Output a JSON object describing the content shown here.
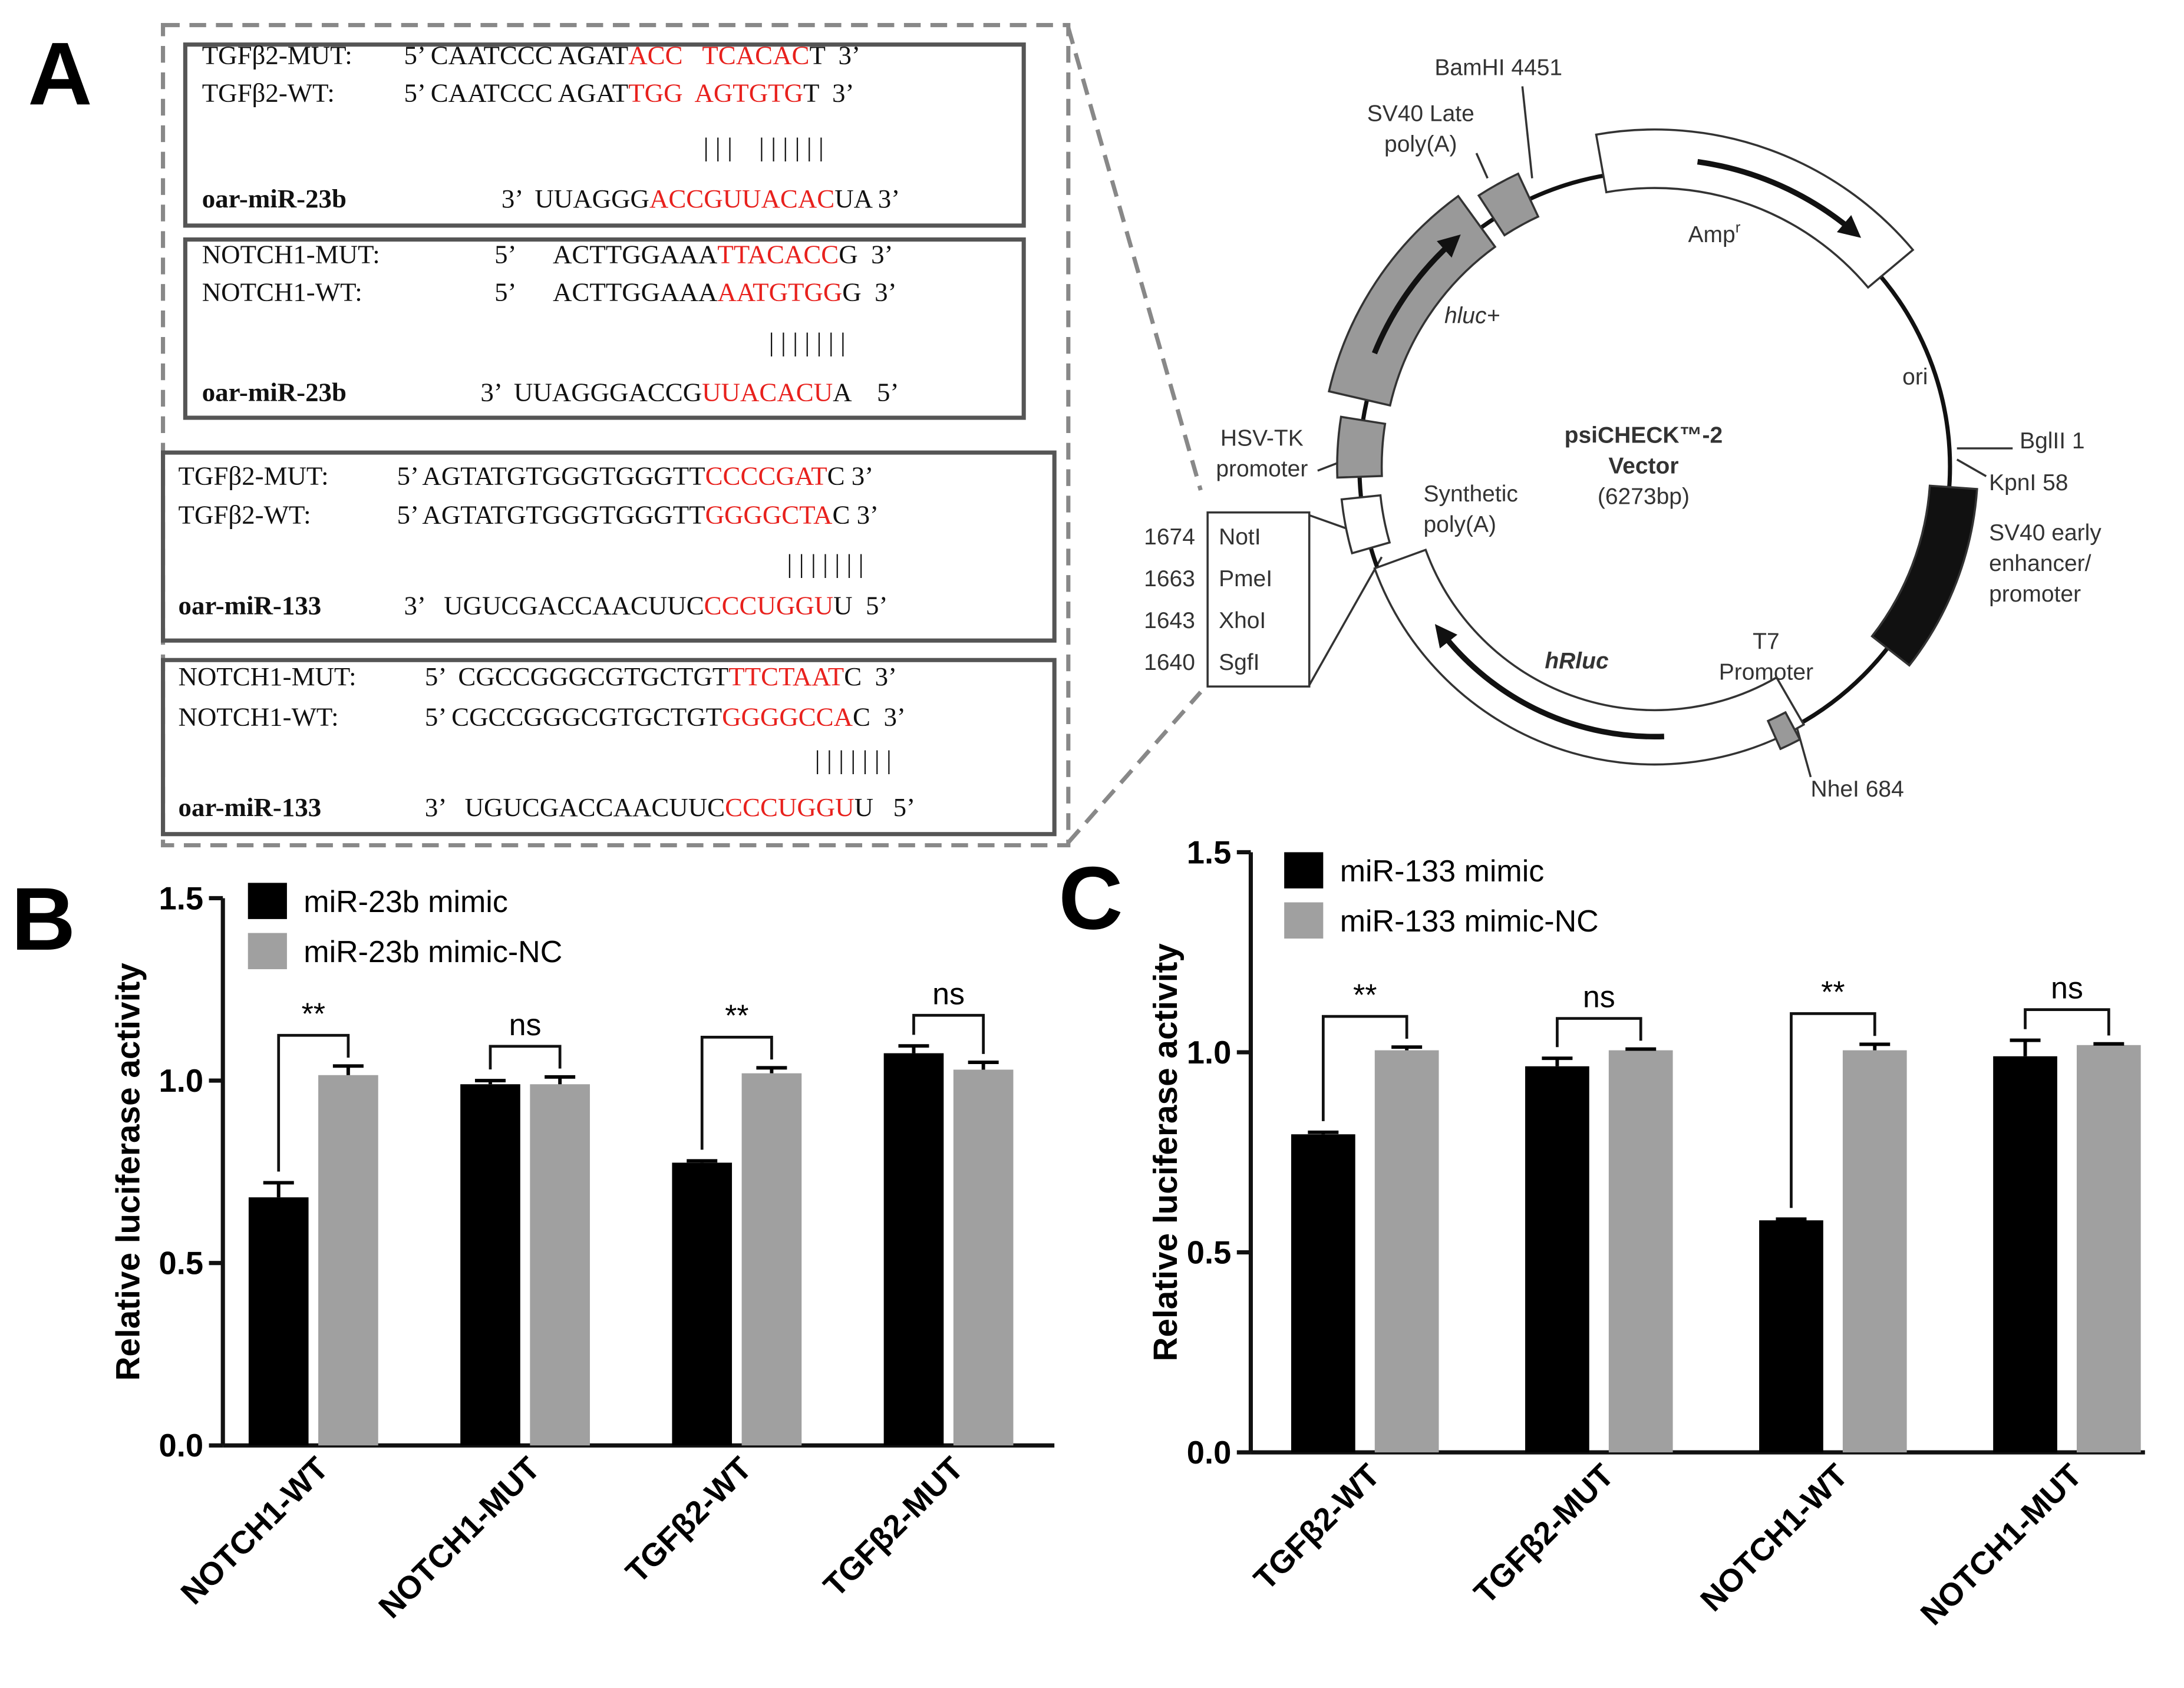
{
  "panels": [
    "A",
    "B",
    "C"
  ],
  "highlight_color": "#e8211d",
  "sequences": [
    {
      "lines": [
        {
          "label": "TGFβ2-MUT:",
          "before": "5’ CAATCCC AGAT",
          "highlight": "ACC   TCACAC",
          "after": "T  3’"
        },
        {
          "label": "TGFβ2-WT:",
          "before": "5’ CAATCCC AGAT",
          "highlight": "TGG  AGTGTG",
          "after": "T  3’"
        },
        {
          "pairs": "| | |    | | | | | |"
        },
        {
          "label": "oar-miR-23b",
          "before": "3’  UUAGGG",
          "highlight": "ACCGUUACAC",
          "after": "UA 3’"
        }
      ]
    },
    {
      "lines": [
        {
          "label": "NOTCH1-MUT:",
          "before": "5’      ACTTGGAAA",
          "highlight": "TTACACC",
          "after": "G  3’"
        },
        {
          "label": "NOTCH1-WT:",
          "before": "5’      ACTTGGAAA",
          "highlight": "AATGTGG",
          "after": "G  3’"
        },
        {
          "pairs": "| | | | | | |"
        },
        {
          "label": "oar-miR-23b",
          "before": "3’  UUAGGGACCG",
          "highlight": "UUACACU",
          "after": "A    5’"
        }
      ]
    },
    {
      "lines": [
        {
          "label": "TGFβ2-MUT:",
          "before": "5’ AGTATGTGGGTGGGTT",
          "highlight": "CCCCGAT",
          "after": "C 3’"
        },
        {
          "label": "TGFβ2-WT:",
          "before": "5’ AGTATGTGGGTGGGTT",
          "highlight": "GGGGCTA",
          "after": "C 3’"
        },
        {
          "pairs": "| | | | | | |"
        },
        {
          "label": "oar-miR-133",
          "before": "3’   UGUCGACCAACUUC",
          "highlight": "CCCUGGU",
          "after": "U  5’"
        }
      ]
    },
    {
      "lines": [
        {
          "label": "NOTCH1-MUT:",
          "before": "5’  CGCCGGGCGTGCTGT",
          "highlight": "TTCTAAT",
          "after": "C  3’"
        },
        {
          "label": "NOTCH1-WT:",
          "before": "5’ CGCCGGGCGTGCTGT",
          "highlight": "GGGGCCA",
          "after": "C  3’"
        },
        {
          "pairs": "| | | | | | |"
        },
        {
          "label": "oar-miR-133",
          "before": "3’   UGUCGACCAACUUC",
          "highlight": "CCCUGGU",
          "after": "U   5’"
        }
      ]
    }
  ],
  "vector": {
    "name": [
      "psiCHECK™-2",
      "Vector"
    ],
    "size": "(6273bp)",
    "labels": [
      [
        "BamHI 4451"
      ],
      [
        "SV40 Late",
        "poly(A)"
      ],
      [
        "Amp",
        "r"
      ],
      [
        "hluc+"
      ],
      [
        "ori"
      ],
      [
        "BglII 1"
      ],
      [
        "KpnI 58"
      ],
      [
        "SV40 early",
        "enhancer/",
        "promoter"
      ],
      [
        "T7",
        "Promoter"
      ],
      [
        "hRluc"
      ],
      [
        "NheI 684"
      ],
      [
        "HSV-TK",
        "promoter"
      ],
      [
        "Synthetic",
        "poly(A)"
      ]
    ],
    "sites": [
      {
        "position": 1674,
        "name": "NotI"
      },
      {
        "position": 1663,
        "name": "PmeI"
      },
      {
        "position": 1643,
        "name": "XhoI"
      },
      {
        "position": 1640,
        "name": "SgfI"
      }
    ]
  },
  "chart_data": [
    {
      "type": "bar",
      "ylabel": "Relative luciferase activity",
      "categories": [
        "NOTCH1-WT",
        "NOTCH1-MUT",
        "TGFβ2-WT",
        "TGFβ2-MUT"
      ],
      "series": [
        {
          "name": "miR-23b mimic",
          "color": "#000000",
          "values": [
            0.68,
            0.99,
            0.775,
            1.075
          ],
          "errors": [
            0.04,
            0.01,
            0.005,
            0.02
          ]
        },
        {
          "name": "miR-23b mimic-NC",
          "color": "#a0a0a0",
          "values": [
            1.015,
            0.99,
            1.02,
            1.03
          ],
          "errors": [
            0.025,
            0.02,
            0.015,
            0.02
          ]
        }
      ],
      "significance": [
        "**",
        "ns",
        "**",
        "ns"
      ],
      "ylim": [
        0,
        1.5
      ],
      "yticks": [
        {
          "value": 0,
          "label": "0.0"
        },
        {
          "value": 0.5,
          "label": "0.5"
        },
        {
          "value": 1,
          "label": "1.0"
        },
        {
          "value": 1.5,
          "label": "1.5"
        }
      ]
    },
    {
      "type": "bar",
      "ylabel": "Relative luciferase activity",
      "categories": [
        "TGFβ2-WT",
        "TGFβ2-MUT",
        "NOTCH1-WT",
        "NOTCH1-MUT"
      ],
      "series": [
        {
          "name": "miR-133 mimic",
          "color": "#000000",
          "values": [
            0.795,
            0.965,
            0.58,
            0.99
          ],
          "errors": [
            0.005,
            0.02,
            0.003,
            0.04
          ]
        },
        {
          "name": "miR-133 mimic-NC",
          "color": "#a0a0a0",
          "values": [
            1.005,
            1.005,
            1.005,
            1.018
          ],
          "errors": [
            0.008,
            0.003,
            0.015,
            0.003
          ]
        }
      ],
      "significance": [
        "**",
        "ns",
        "**",
        "ns"
      ],
      "ylim": [
        0,
        1.5
      ],
      "yticks": [
        {
          "value": 0,
          "label": "0.0"
        },
        {
          "value": 0.5,
          "label": "0.5"
        },
        {
          "value": 1,
          "label": "1.0"
        },
        {
          "value": 1.5,
          "label": "1.5"
        }
      ]
    }
  ]
}
